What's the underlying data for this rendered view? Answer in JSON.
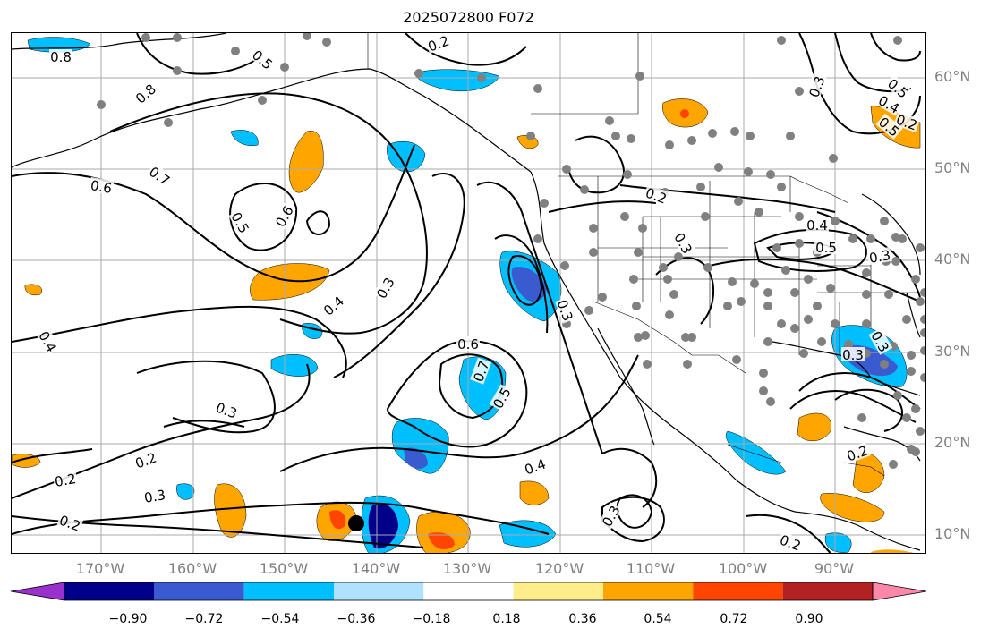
{
  "title": "2025072800 F072",
  "lat_labels": [
    "60°N",
    "50°N",
    "40°N",
    "30°N",
    "20°N",
    "10°N"
  ],
  "lon_labels": [
    "170°W",
    "160°W",
    "150°W",
    "140°W",
    "130°W",
    "120°W",
    "110°W",
    "100°W",
    "90°W"
  ],
  "colorbar": {
    "ticks": [
      "−0.90",
      "−0.72",
      "−0.54",
      "−0.36",
      "−0.18",
      "0.18",
      "0.36",
      "0.54",
      "0.72",
      "0.90"
    ],
    "colors": [
      "#9932cc",
      "#00008b",
      "#3a5bd0",
      "#00bfff",
      "#b0e2ff",
      "#ffffff",
      "#ffec8b",
      "#ffa500",
      "#ff4500",
      "#b22222",
      "#ff88aa"
    ]
  },
  "contour_labels": [
    "0.8",
    "0.8",
    "0.5",
    "0.2",
    "0.3",
    "0.5",
    "0.4",
    "0.5",
    "0.6",
    "0.7",
    "0.5",
    "0.6",
    "0.4",
    "0.3",
    "0.4",
    "0.3",
    "0.2",
    "0.2",
    "0.3",
    "0.2",
    "0.6",
    "0.7",
    "0.5",
    "0.4",
    "0.3",
    "0.2",
    "0.2",
    "0.3",
    "0.4",
    "0.5",
    "0.3",
    "0.3",
    "0.2",
    "0.3",
    "0.3",
    "0.2"
  ],
  "colors": {
    "grid": "#aaaaaa",
    "contour": "#000000",
    "station": "#808080"
  }
}
